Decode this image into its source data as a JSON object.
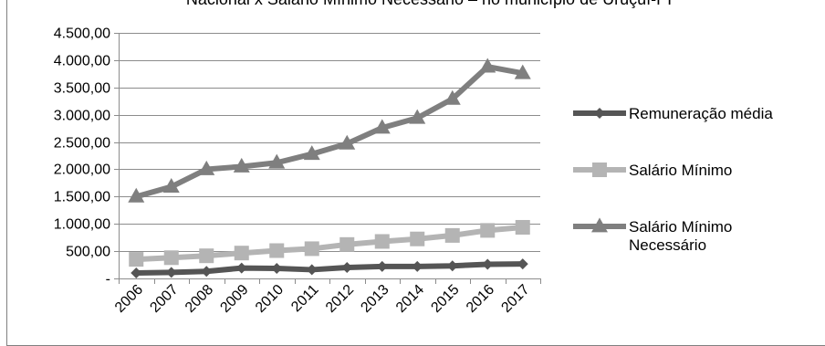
{
  "chart_data": {
    "type": "line",
    "title": "Nacional x Salário Mínimo Necessário – no município de Uruçuí-PI",
    "xlabel": "",
    "ylabel": "",
    "categories": [
      "2006",
      "2007",
      "2008",
      "2009",
      "2010",
      "2011",
      "2012",
      "2013",
      "2014",
      "2015",
      "2016",
      "2017"
    ],
    "ylim": [
      0,
      4500
    ],
    "y_ticks": [
      0,
      500,
      1000,
      1500,
      2000,
      2500,
      3000,
      3500,
      4000,
      4500
    ],
    "y_tick_labels": [
      "-",
      "500,00",
      "1.000,00",
      "1.500,00",
      "2.000,00",
      "2.500,00",
      "3.000,00",
      "3.500,00",
      "4.000,00",
      "4.500,00"
    ],
    "grid": true,
    "legend_position": "right",
    "series": [
      {
        "name": "Remuneração média",
        "marker": "diamond",
        "color": "#555555",
        "values": [
          100,
          110,
          130,
          190,
          185,
          160,
          200,
          220,
          220,
          230,
          260,
          265
        ]
      },
      {
        "name": "Salário Mínimo",
        "marker": "square",
        "color": "#b4b4b4",
        "values": [
          350,
          380,
          415,
          465,
          510,
          545,
          622,
          678,
          724,
          788,
          880,
          937
        ]
      },
      {
        "name": "Salário Mínimo Necessário",
        "legend_lines": [
          "Salário Mínimo",
          "Necessário"
        ],
        "marker": "triangle",
        "color": "#7f7f7f",
        "values": [
          1500,
          1680,
          2000,
          2050,
          2120,
          2280,
          2470,
          2760,
          2940,
          3290,
          3880,
          3760
        ]
      }
    ]
  }
}
